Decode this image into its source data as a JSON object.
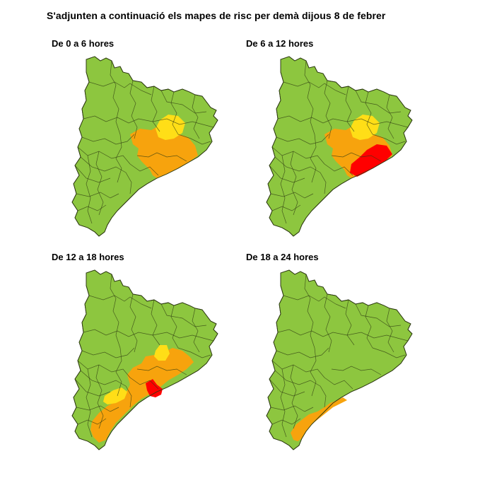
{
  "title": "S'adjunten a continuació els mapes de risc per demà dijous 8 de febrer",
  "colors": {
    "green": "#8dc63f",
    "yellow": "#ffde17",
    "orange": "#f7a30d",
    "red": "#ff0000"
  },
  "panels": [
    {
      "label": "De 0 a 6 hores",
      "zones": [
        {
          "level": "orange",
          "shape": "center"
        },
        {
          "level": "yellow",
          "shape": "north"
        }
      ]
    },
    {
      "label": "De 6 a 12 hores",
      "zones": [
        {
          "level": "orange",
          "shape": "center"
        },
        {
          "level": "yellow",
          "shape": "north"
        },
        {
          "level": "red",
          "shape": "coast"
        }
      ]
    },
    {
      "label": "De 12 a 18 hores",
      "zones": [
        {
          "level": "orange",
          "shape": "south"
        },
        {
          "level": "yellow",
          "shape": "north-small"
        },
        {
          "level": "yellow",
          "shape": "west-small"
        },
        {
          "level": "red",
          "shape": "barcelona"
        }
      ]
    },
    {
      "label": "De 18 a 24 hores",
      "zones": [
        {
          "level": "orange",
          "shape": "coast-strip"
        }
      ]
    }
  ]
}
